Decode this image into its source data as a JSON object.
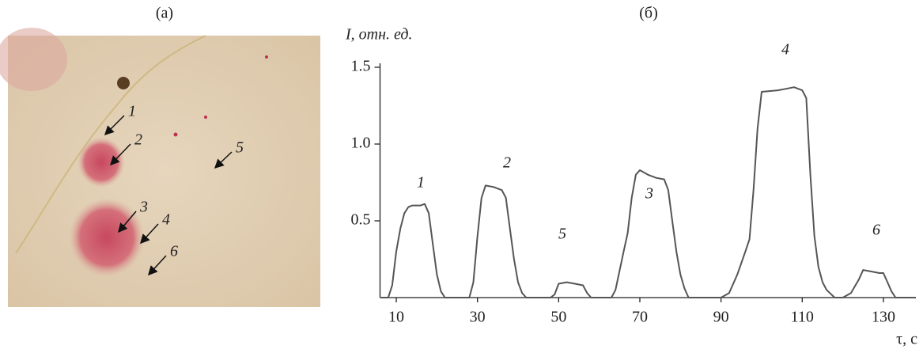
{
  "panel_a": {
    "title": "(a)",
    "labels": [
      "1",
      "2",
      "3",
      "4",
      "5",
      "6"
    ]
  },
  "chart_data": {
    "type": "line",
    "title": "(б)",
    "y_label": "I, отн. ед.",
    "x_label": "τ, с",
    "x": [
      6,
      8,
      9,
      10,
      11,
      12,
      13,
      14,
      16,
      17,
      18,
      19,
      20,
      21,
      22,
      28,
      29,
      30,
      31,
      32,
      34,
      36,
      37,
      38,
      39,
      40,
      41,
      42,
      48,
      49,
      50,
      52,
      54,
      56,
      57,
      58,
      63,
      64,
      66,
      67,
      68,
      69,
      70,
      72,
      74,
      76,
      77,
      78,
      79,
      80,
      81,
      82,
      90,
      92,
      94,
      96,
      97,
      98,
      99,
      100,
      104,
      106,
      108,
      110,
      111,
      112,
      113,
      114,
      115,
      116,
      118,
      120,
      122,
      124,
      125,
      127,
      129,
      130,
      131,
      132,
      133,
      138
    ],
    "series": [
      {
        "color": "#555555",
        "values": [
          0,
          0,
          0.08,
          0.3,
          0.45,
          0.55,
          0.59,
          0.6,
          0.6,
          0.61,
          0.55,
          0.35,
          0.15,
          0.04,
          0,
          0,
          0.1,
          0.4,
          0.65,
          0.73,
          0.72,
          0.7,
          0.65,
          0.45,
          0.25,
          0.1,
          0.03,
          0,
          0,
          0.02,
          0.09,
          0.1,
          0.09,
          0.08,
          0.03,
          0,
          0,
          0.05,
          0.3,
          0.42,
          0.65,
          0.8,
          0.83,
          0.8,
          0.78,
          0.77,
          0.7,
          0.5,
          0.3,
          0.15,
          0.06,
          0,
          0,
          0.03,
          0.15,
          0.3,
          0.38,
          0.7,
          1.1,
          1.34,
          1.35,
          1.36,
          1.37,
          1.35,
          1.3,
          0.8,
          0.4,
          0.2,
          0.1,
          0.05,
          0,
          0,
          0.03,
          0.12,
          0.18,
          0.17,
          0.16,
          0.16,
          0.1,
          0.04,
          0,
          0
        ]
      }
    ],
    "annotations": [
      "1",
      "2",
      "5",
      "3",
      "4",
      "6"
    ],
    "xlim": [
      6,
      138
    ],
    "ylim": [
      0,
      1.5
    ],
    "xticks": [
      10,
      30,
      50,
      70,
      90,
      110,
      130
    ],
    "yticks": [
      0.5,
      {
        "value": 1,
        "label": "1.0"
      },
      1.5
    ]
  }
}
